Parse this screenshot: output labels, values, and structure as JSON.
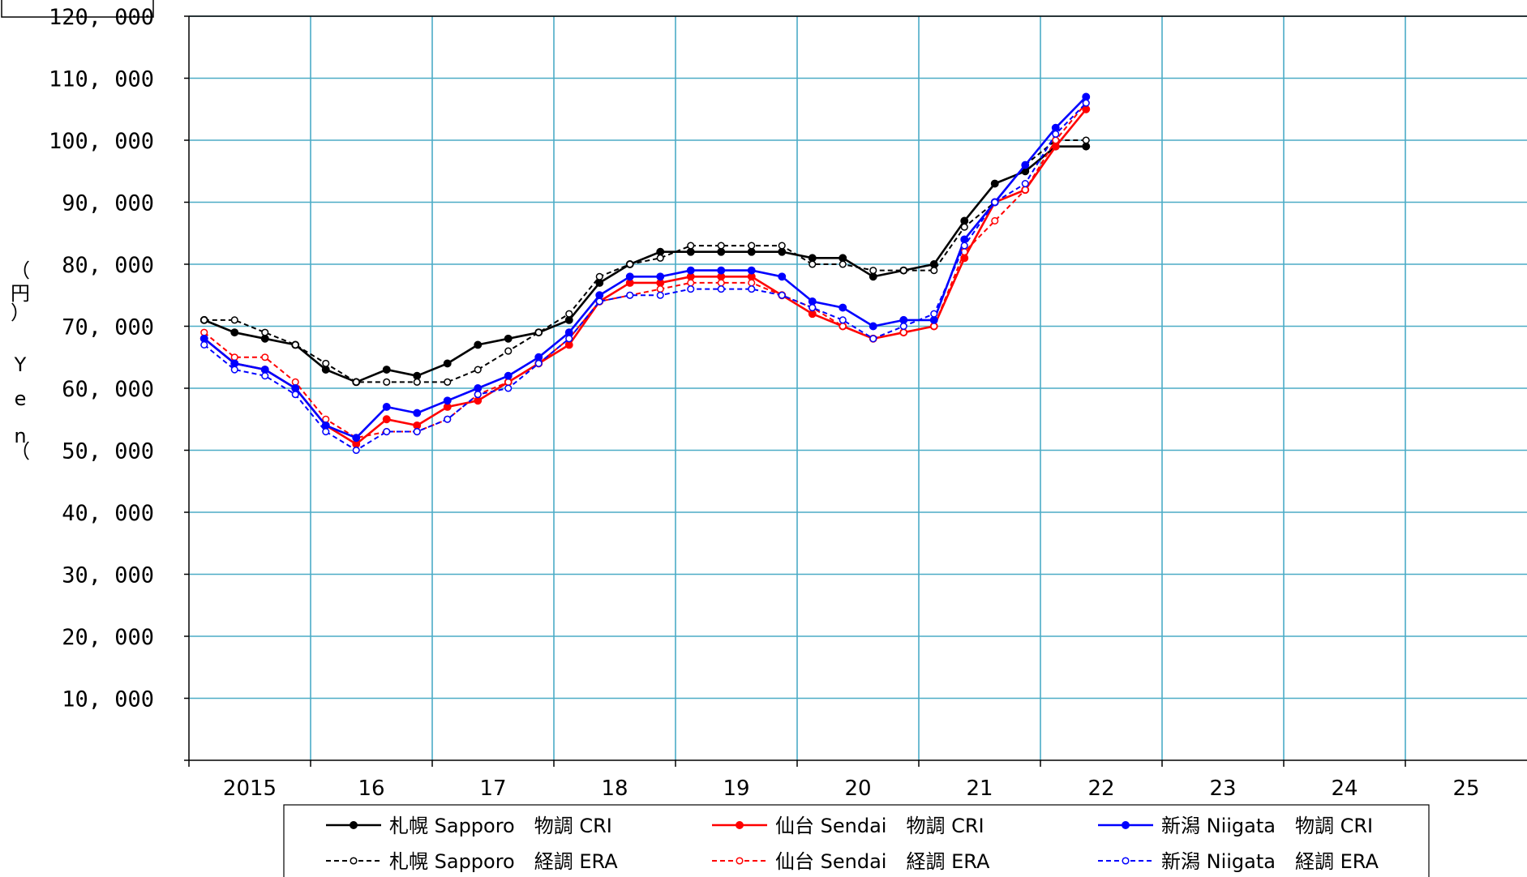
{
  "chart_data": {
    "type": "line",
    "title": "",
    "xlabel": "",
    "ylabel_chars": [
      "（",
      "円",
      "）",
      "Y",
      "e",
      "n",
      "（"
    ],
    "ylim": [
      0,
      120000
    ],
    "yticks": [
      10000,
      20000,
      30000,
      40000,
      50000,
      60000,
      70000,
      80000,
      90000,
      100000,
      110000,
      120000
    ],
    "ytick_labels": [
      "10, 000",
      "20, 000",
      "30, 000",
      "40, 000",
      "50, 000",
      "60, 000",
      "70, 000",
      "80, 000",
      "90, 000",
      "100, 000",
      "110, 000",
      "120, 000"
    ],
    "xlim": [
      2015,
      2026
    ],
    "xticks": [
      2015,
      2016,
      2017,
      2018,
      2019,
      2020,
      2021,
      2022,
      2023,
      2024,
      2025
    ],
    "xtick_labels": [
      "2015",
      "16",
      "17",
      "18",
      "19",
      "20",
      "21",
      "22",
      "23",
      "24",
      "25"
    ],
    "grid": true,
    "grid_color": "#4bacc6",
    "legend_position": "bottom",
    "x": [
      2015.125,
      2015.375,
      2015.625,
      2015.875,
      2016.125,
      2016.375,
      2016.625,
      2016.875,
      2017.125,
      2017.375,
      2017.625,
      2017.875,
      2018.125,
      2018.375,
      2018.625,
      2018.875,
      2019.125,
      2019.375,
      2019.625,
      2019.875,
      2020.125,
      2020.375,
      2020.625,
      2020.875,
      2021.125,
      2021.375,
      2021.625,
      2021.875,
      2022.125,
      2022.375
    ],
    "series": [
      {
        "name": "札幌 Sapporo　物調 CRI",
        "color": "#000000",
        "dash": false,
        "values": [
          71000,
          69000,
          68000,
          67000,
          63000,
          61000,
          63000,
          62000,
          64000,
          67000,
          68000,
          69000,
          71000,
          77000,
          80000,
          82000,
          82000,
          82000,
          82000,
          82000,
          81000,
          81000,
          78000,
          79000,
          80000,
          87000,
          93000,
          95000,
          99000,
          99000
        ]
      },
      {
        "name": "札幌 Sapporo　経調 ERA",
        "color": "#000000",
        "dash": true,
        "values": [
          71000,
          71000,
          69000,
          67000,
          64000,
          61000,
          61000,
          61000,
          61000,
          63000,
          66000,
          69000,
          72000,
          78000,
          80000,
          81000,
          83000,
          83000,
          83000,
          83000,
          80000,
          80000,
          79000,
          79000,
          79000,
          86000,
          90000,
          96000,
          100000,
          100000
        ]
      },
      {
        "name": "仙台 Sendai　物調 CRI",
        "color": "#ff0000",
        "dash": false,
        "values": [
          68000,
          64000,
          63000,
          60000,
          54000,
          51000,
          55000,
          54000,
          57000,
          58000,
          61000,
          64000,
          67000,
          74000,
          77000,
          77000,
          78000,
          78000,
          78000,
          75000,
          72000,
          70000,
          68000,
          69000,
          70000,
          81000,
          90000,
          92000,
          99000,
          105000
        ]
      },
      {
        "name": "仙台 Sendai　経調 ERA",
        "color": "#ff0000",
        "dash": true,
        "values": [
          69000,
          65000,
          65000,
          61000,
          55000,
          52000,
          53000,
          53000,
          55000,
          59000,
          61000,
          64000,
          68000,
          74000,
          75000,
          76000,
          77000,
          77000,
          77000,
          75000,
          73000,
          70000,
          68000,
          69000,
          70000,
          82000,
          87000,
          92000,
          100000,
          106000
        ]
      },
      {
        "name": "新潟 Niigata　物調 CRI",
        "color": "#0000ff",
        "dash": false,
        "values": [
          68000,
          64000,
          63000,
          60000,
          54000,
          52000,
          57000,
          56000,
          58000,
          60000,
          62000,
          65000,
          69000,
          75000,
          78000,
          78000,
          79000,
          79000,
          79000,
          78000,
          74000,
          73000,
          70000,
          71000,
          71000,
          84000,
          90000,
          96000,
          102000,
          107000
        ]
      },
      {
        "name": "新潟 Niigata　経調 ERA",
        "color": "#0000ff",
        "dash": true,
        "values": [
          67000,
          63000,
          62000,
          59000,
          53000,
          50000,
          53000,
          53000,
          55000,
          59000,
          60000,
          64000,
          68000,
          74000,
          75000,
          75000,
          76000,
          76000,
          76000,
          75000,
          73000,
          71000,
          68000,
          70000,
          72000,
          83000,
          90000,
          93000,
          101000,
          106000
        ]
      }
    ]
  }
}
